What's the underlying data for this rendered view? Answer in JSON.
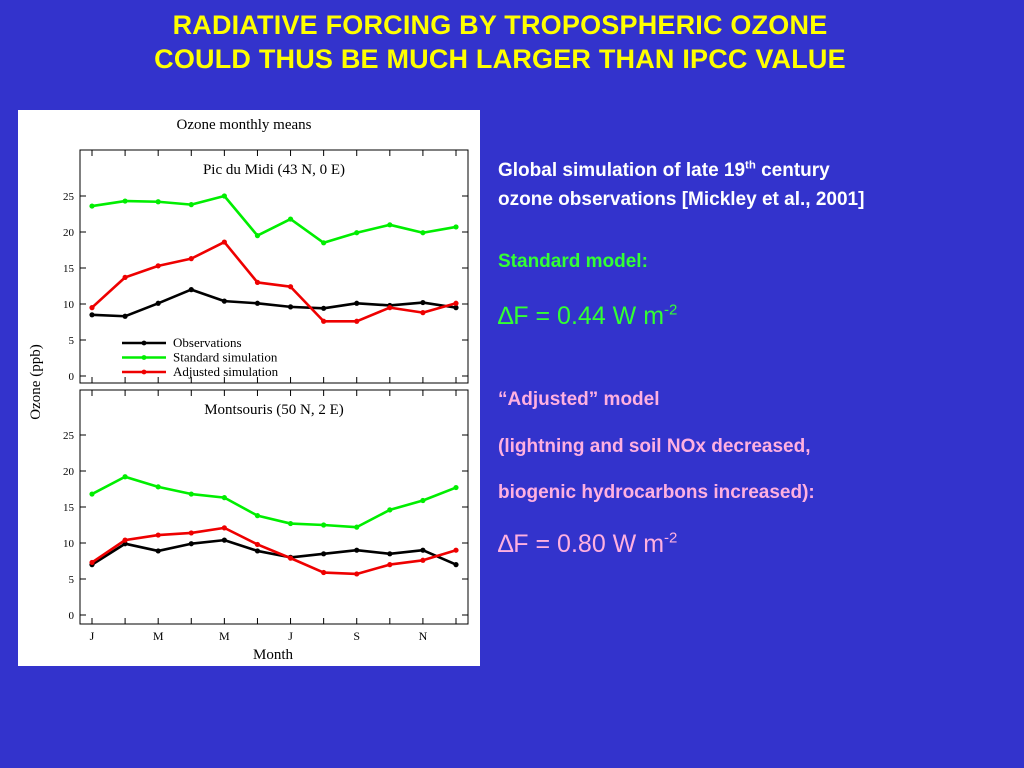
{
  "slide": {
    "title_line1": "RADIATIVE FORCING BY TROPOSPHERIC OZONE",
    "title_line2": "COULD THUS BE MUCH LARGER THAN IPCC VALUE",
    "colors": {
      "background": "#3333cc",
      "title": "#ffff00",
      "green_text": "#33ff33",
      "pink_text": "#ffb0e0"
    }
  },
  "text": {
    "intro_a": "Global simulation of late 19",
    "intro_sup": "th",
    "intro_b": " century",
    "intro_line2": "ozone observations [Mickley et al., 2001]",
    "standard_label": "Standard model:",
    "standard_F_symbol": "∆",
    "standard_F_value": "F = 0.44 W m",
    "standard_F_exp": "-2",
    "adjusted_label": "“Adjusted” model",
    "adjusted_note1": "(lightning and soil NOx decreased,",
    "adjusted_note2": "biogenic hydrocarbons increased):",
    "adjusted_F_symbol": "∆",
    "adjusted_F_value": "F = 0.80 W m",
    "adjusted_F_exp": "-2"
  },
  "chart_data": {
    "type": "line",
    "title": "Ozone monthly means",
    "xlabel": "Month",
    "ylabel": "Ozone (ppb)",
    "x_tick_labels": [
      "J",
      "M",
      "M",
      "J",
      "S",
      "N"
    ],
    "x": [
      1,
      2,
      3,
      4,
      5,
      6,
      7,
      8,
      9,
      10,
      11,
      12
    ],
    "xlim": [
      1,
      12
    ],
    "ylim": [
      0,
      25
    ],
    "y_ticks": [
      "0",
      "5",
      "10",
      "15",
      "20",
      "25"
    ],
    "legend": {
      "placement": "bottom-left of top panel",
      "entries": [
        "Observations",
        "Standard simulation",
        "Adjusted simulation"
      ]
    },
    "colors": {
      "Observations": "#000000",
      "Standard simulation": "#00ee00",
      "Adjusted simulation": "#ee0000"
    },
    "panels": [
      {
        "title": "Pic du Midi (43 N, 0 E)",
        "series": [
          {
            "name": "Observations",
            "values": [
              8.5,
              8.3,
              10.1,
              12.0,
              10.4,
              10.1,
              9.6,
              9.4,
              10.1,
              9.8,
              10.2,
              9.5
            ]
          },
          {
            "name": "Standard simulation",
            "values": [
              23.6,
              24.3,
              24.2,
              23.8,
              25.0,
              19.5,
              21.8,
              18.5,
              19.9,
              21.0,
              19.9,
              20.7
            ]
          },
          {
            "name": "Adjusted simulation",
            "values": [
              9.5,
              13.7,
              15.3,
              16.3,
              18.6,
              13.0,
              12.4,
              7.6,
              7.6,
              9.5,
              8.8,
              10.1
            ]
          }
        ]
      },
      {
        "title": "Montsouris (50 N, 2 E)",
        "series": [
          {
            "name": "Observations",
            "values": [
              7.0,
              9.9,
              8.9,
              9.9,
              10.4,
              8.9,
              8.0,
              8.5,
              9.0,
              8.5,
              9.0,
              7.0
            ]
          },
          {
            "name": "Standard simulation",
            "values": [
              16.8,
              19.2,
              17.8,
              16.8,
              16.3,
              13.8,
              12.7,
              12.5,
              12.2,
              14.6,
              15.9,
              17.7
            ]
          },
          {
            "name": "Adjusted simulation",
            "values": [
              7.3,
              10.4,
              11.1,
              11.4,
              12.1,
              9.8,
              7.9,
              5.9,
              5.7,
              7.0,
              7.6,
              9.0
            ]
          }
        ]
      }
    ]
  }
}
